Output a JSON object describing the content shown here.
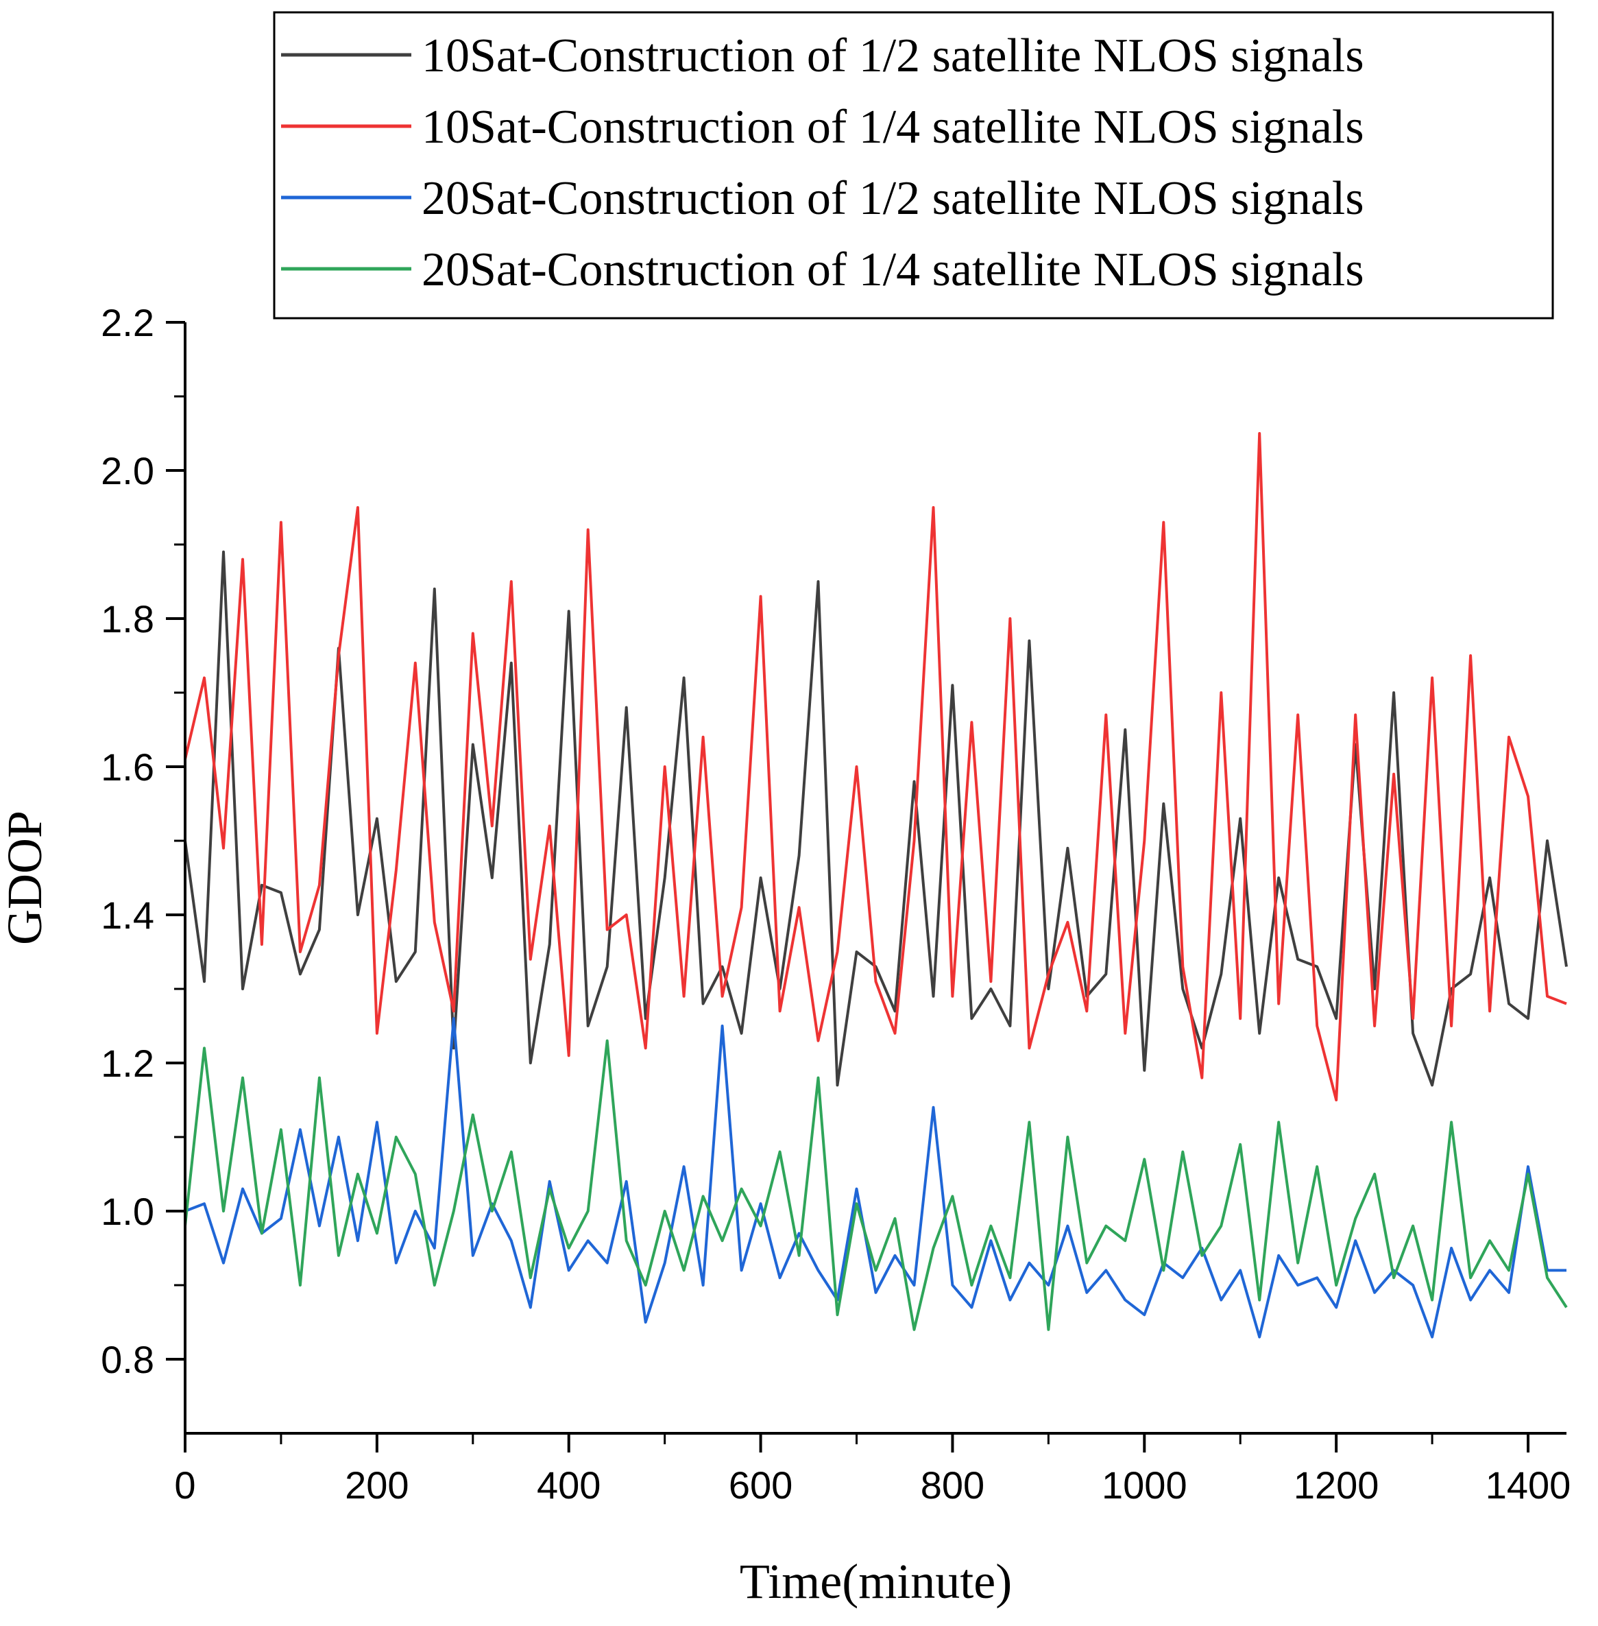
{
  "chart_data": {
    "type": "line",
    "xlabel": "Time(minute)",
    "ylabel": "GDOP",
    "xlim": [
      0,
      1440
    ],
    "ylim": [
      0.7,
      2.2
    ],
    "xticks": [
      0,
      200,
      400,
      600,
      800,
      1000,
      1200,
      1400
    ],
    "xtick_labels": [
      "0",
      "200",
      "400",
      "600",
      "800",
      "1000",
      "1200",
      "1400"
    ],
    "yticks": [
      0.8,
      1.0,
      1.2,
      1.4,
      1.6,
      1.8,
      2.0,
      2.2
    ],
    "ytick_labels": [
      "0.8",
      "1.0",
      "1.2",
      "1.4",
      "1.6",
      "1.8",
      "2.0",
      "2.2"
    ],
    "grid": false,
    "legend_position": "top",
    "series": [
      {
        "name": "10Sat-Construction of 1/2 satellite NLOS signals",
        "color": "#3f3f3f",
        "x": [
          0,
          20,
          40,
          60,
          80,
          100,
          120,
          140,
          160,
          180,
          200,
          220,
          240,
          260,
          280,
          300,
          320,
          340,
          360,
          380,
          400,
          420,
          440,
          460,
          480,
          500,
          520,
          540,
          560,
          580,
          600,
          620,
          640,
          660,
          680,
          700,
          720,
          740,
          760,
          780,
          800,
          820,
          840,
          860,
          880,
          900,
          920,
          940,
          960,
          980,
          1000,
          1020,
          1040,
          1060,
          1080,
          1100,
          1120,
          1140,
          1160,
          1180,
          1200,
          1220,
          1240,
          1260,
          1280,
          1300,
          1320,
          1340,
          1360,
          1380,
          1400,
          1420,
          1440
        ],
        "values": [
          1.5,
          1.31,
          1.89,
          1.3,
          1.44,
          1.43,
          1.32,
          1.38,
          1.76,
          1.4,
          1.53,
          1.31,
          1.35,
          1.84,
          1.22,
          1.63,
          1.45,
          1.74,
          1.2,
          1.36,
          1.81,
          1.25,
          1.33,
          1.68,
          1.26,
          1.45,
          1.72,
          1.28,
          1.33,
          1.24,
          1.45,
          1.3,
          1.48,
          1.85,
          1.17,
          1.35,
          1.33,
          1.27,
          1.58,
          1.29,
          1.71,
          1.26,
          1.3,
          1.25,
          1.77,
          1.3,
          1.49,
          1.29,
          1.32,
          1.65,
          1.19,
          1.55,
          1.3,
          1.22,
          1.32,
          1.53,
          1.24,
          1.45,
          1.34,
          1.33,
          1.26,
          1.63,
          1.3,
          1.7,
          1.24,
          1.17,
          1.3,
          1.32,
          1.45,
          1.28,
          1.26,
          1.5,
          1.33
        ]
      },
      {
        "name": "10Sat-Construction of 1/4 satellite NLOS signals",
        "color": "#ee3333",
        "x": [
          0,
          20,
          40,
          60,
          80,
          100,
          120,
          140,
          160,
          180,
          200,
          220,
          240,
          260,
          280,
          300,
          320,
          340,
          360,
          380,
          400,
          420,
          440,
          460,
          480,
          500,
          520,
          540,
          560,
          580,
          600,
          620,
          640,
          660,
          680,
          700,
          720,
          740,
          760,
          780,
          800,
          820,
          840,
          860,
          880,
          900,
          920,
          940,
          960,
          980,
          1000,
          1020,
          1040,
          1060,
          1080,
          1100,
          1120,
          1140,
          1160,
          1180,
          1200,
          1220,
          1240,
          1260,
          1280,
          1300,
          1320,
          1340,
          1360,
          1380,
          1400,
          1420,
          1440
        ],
        "values": [
          1.61,
          1.72,
          1.49,
          1.88,
          1.36,
          1.93,
          1.35,
          1.44,
          1.75,
          1.95,
          1.24,
          1.46,
          1.74,
          1.39,
          1.27,
          1.78,
          1.52,
          1.85,
          1.34,
          1.52,
          1.21,
          1.92,
          1.38,
          1.4,
          1.22,
          1.6,
          1.29,
          1.64,
          1.29,
          1.41,
          1.83,
          1.27,
          1.41,
          1.23,
          1.35,
          1.6,
          1.31,
          1.24,
          1.5,
          1.95,
          1.29,
          1.66,
          1.31,
          1.8,
          1.22,
          1.32,
          1.39,
          1.27,
          1.67,
          1.24,
          1.5,
          1.93,
          1.33,
          1.18,
          1.7,
          1.26,
          2.05,
          1.28,
          1.67,
          1.25,
          1.15,
          1.67,
          1.25,
          1.59,
          1.26,
          1.72,
          1.25,
          1.75,
          1.27,
          1.64,
          1.56,
          1.29,
          1.28
        ]
      },
      {
        "name": "20Sat-Construction of 1/2 satellite NLOS signals",
        "color": "#1f66d6",
        "x": [
          0,
          20,
          40,
          60,
          80,
          100,
          120,
          140,
          160,
          180,
          200,
          220,
          240,
          260,
          280,
          300,
          320,
          340,
          360,
          380,
          400,
          420,
          440,
          460,
          480,
          500,
          520,
          540,
          560,
          580,
          600,
          620,
          640,
          660,
          680,
          700,
          720,
          740,
          760,
          780,
          800,
          820,
          840,
          860,
          880,
          900,
          920,
          940,
          960,
          980,
          1000,
          1020,
          1040,
          1060,
          1080,
          1100,
          1120,
          1140,
          1160,
          1180,
          1200,
          1220,
          1240,
          1260,
          1280,
          1300,
          1320,
          1340,
          1360,
          1380,
          1400,
          1420,
          1440
        ],
        "values": [
          1.0,
          1.01,
          0.93,
          1.03,
          0.97,
          0.99,
          1.11,
          0.98,
          1.1,
          0.96,
          1.12,
          0.93,
          1.0,
          0.95,
          1.26,
          0.94,
          1.01,
          0.96,
          0.87,
          1.04,
          0.92,
          0.96,
          0.93,
          1.04,
          0.85,
          0.93,
          1.06,
          0.9,
          1.25,
          0.92,
          1.01,
          0.91,
          0.97,
          0.92,
          0.88,
          1.03,
          0.89,
          0.94,
          0.9,
          1.14,
          0.9,
          0.87,
          0.96,
          0.88,
          0.93,
          0.9,
          0.98,
          0.89,
          0.92,
          0.88,
          0.86,
          0.93,
          0.91,
          0.95,
          0.88,
          0.92,
          0.83,
          0.94,
          0.9,
          0.91,
          0.87,
          0.96,
          0.89,
          0.92,
          0.9,
          0.83,
          0.95,
          0.88,
          0.92,
          0.89,
          1.06,
          0.92,
          0.92
        ]
      },
      {
        "name": "20Sat-Construction of 1/4 satellite NLOS signals",
        "color": "#2fa55a",
        "x": [
          0,
          20,
          40,
          60,
          80,
          100,
          120,
          140,
          160,
          180,
          200,
          220,
          240,
          260,
          280,
          300,
          320,
          340,
          360,
          380,
          400,
          420,
          440,
          460,
          480,
          500,
          520,
          540,
          560,
          580,
          600,
          620,
          640,
          660,
          680,
          700,
          720,
          740,
          760,
          780,
          800,
          820,
          840,
          860,
          880,
          900,
          920,
          940,
          960,
          980,
          1000,
          1020,
          1040,
          1060,
          1080,
          1100,
          1120,
          1140,
          1160,
          1180,
          1200,
          1220,
          1240,
          1260,
          1280,
          1300,
          1320,
          1340,
          1360,
          1380,
          1400,
          1420,
          1440
        ],
        "values": [
          0.98,
          1.22,
          1.0,
          1.18,
          0.97,
          1.11,
          0.9,
          1.18,
          0.94,
          1.05,
          0.97,
          1.1,
          1.05,
          0.9,
          1.0,
          1.13,
          1.0,
          1.08,
          0.91,
          1.03,
          0.95,
          1.0,
          1.23,
          0.96,
          0.9,
          1.0,
          0.92,
          1.02,
          0.96,
          1.03,
          0.98,
          1.08,
          0.94,
          1.18,
          0.86,
          1.01,
          0.92,
          0.99,
          0.84,
          0.95,
          1.02,
          0.9,
          0.98,
          0.91,
          1.12,
          0.84,
          1.1,
          0.93,
          0.98,
          0.96,
          1.07,
          0.92,
          1.08,
          0.94,
          0.98,
          1.09,
          0.88,
          1.12,
          0.93,
          1.06,
          0.9,
          0.99,
          1.05,
          0.91,
          0.98,
          0.88,
          1.12,
          0.91,
          0.96,
          0.92,
          1.05,
          0.91,
          0.87
        ]
      }
    ]
  }
}
